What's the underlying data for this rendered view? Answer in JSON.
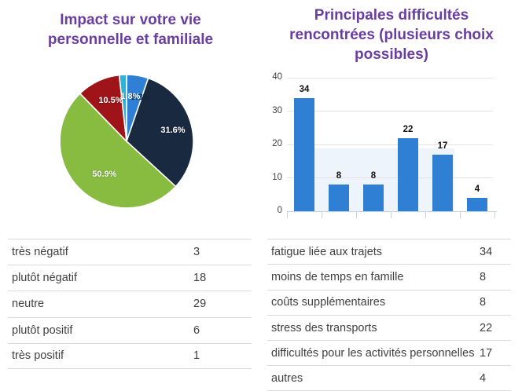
{
  "theme": {
    "title_color": "#6a3da0",
    "table_text_color": "#404040",
    "grid_color": "#e2e2e2",
    "axis_color": "#c3d4e6",
    "highlight_color": "#edf4fb",
    "bar_color": "#2f80d5"
  },
  "chart_data": [
    {
      "type": "pie",
      "title": "Impact sur votre vie personnelle et familiale",
      "labels": [
        "très négatif",
        "plutôt négatif",
        "neutre",
        "plutôt positif",
        "très positif"
      ],
      "values": [
        3,
        18,
        29,
        6,
        1
      ],
      "percent_labels": [
        "5.3%",
        "31.6%",
        "50.9%",
        "10.5%",
        "1.8%"
      ],
      "colors": [
        "#2f80d5",
        "#19293f",
        "#87bc40",
        "#9e1418",
        "#29b4d8"
      ],
      "label_colors": [
        "#16263c",
        "#ffffff",
        "#ffffff",
        "#ffffff",
        "#ffffff"
      ],
      "label_positions": [
        {
          "x": 60.2,
          "y": 18.2
        },
        {
          "x": 83.5,
          "y": 42.0
        },
        {
          "x": 34.0,
          "y": 73.8
        },
        {
          "x": 38.6,
          "y": 20.5
        },
        {
          "x": 52.8,
          "y": 17.6
        }
      ],
      "legend_position": "none"
    },
    {
      "type": "bar",
      "title": "Principales difficultés rencontrées (plusieurs choix possibles)",
      "categories": [
        "fatigue liée aux trajets",
        "moins de temps en famille",
        "coûts supplémentaires",
        "stress des transports",
        "difficultés pour les activités personnelles",
        "autres"
      ],
      "values": [
        34,
        8,
        8,
        22,
        17,
        4
      ],
      "xlabel": "",
      "ylabel": "",
      "ylim": [
        0,
        40
      ],
      "y_ticks": [
        0,
        10,
        20,
        30,
        40
      ],
      "grid": true,
      "x_tick_labels_visible": false
    }
  ],
  "left_table": {
    "rows": [
      {
        "label": "très négatif",
        "value": "3"
      },
      {
        "label": "plutôt négatif",
        "value": "18"
      },
      {
        "label": "neutre",
        "value": "29"
      },
      {
        "label": "plutôt positif",
        "value": "6"
      },
      {
        "label": "très positif",
        "value": "1"
      }
    ]
  },
  "right_table": {
    "rows": [
      {
        "label": "fatigue liée aux trajets",
        "value": "34"
      },
      {
        "label": "moins de temps en famille",
        "value": "8"
      },
      {
        "label": "coûts supplémentaires",
        "value": "8"
      },
      {
        "label": "stress des transports",
        "value": "22"
      },
      {
        "label": "difficultés pour les activités personnelles",
        "value": "17"
      },
      {
        "label": "autres",
        "value": "4"
      }
    ]
  }
}
